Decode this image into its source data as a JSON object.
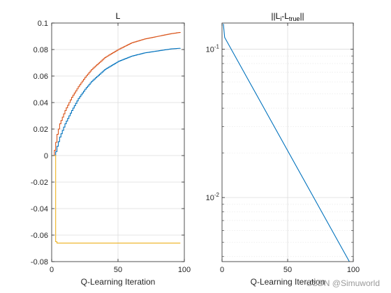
{
  "watermark": "CSDN @Simuworld",
  "colors": {
    "series1": "#0072BD",
    "series2": "#D95319",
    "series3": "#EDB120",
    "grid": "#dcdcdc",
    "axis": "#262626",
    "minor_grid": "#e6e6e6"
  },
  "chart_data": [
    {
      "type": "line",
      "style": "stairs",
      "title": "L",
      "xlabel": "Q-Learning Iteration",
      "ylabel": "",
      "xlim": [
        0,
        100
      ],
      "ylim": [
        -0.08,
        0.1
      ],
      "xticks": [
        0,
        50,
        100
      ],
      "xticklabels": [
        "0",
        "50",
        "100"
      ],
      "yticks": [
        -0.08,
        -0.06,
        -0.04,
        -0.02,
        0,
        0.02,
        0.04,
        0.06,
        0.08,
        0.1
      ],
      "yticklabels": [
        "-0.08",
        "-0.06",
        "-0.04",
        "-0.02",
        "0",
        "0.02",
        "0.04",
        "0.06",
        "0.08",
        "0.1"
      ],
      "grid": true,
      "x": [
        1,
        2,
        3,
        4,
        6,
        8,
        10,
        15,
        20,
        25,
        30,
        40,
        50,
        60,
        70,
        80,
        90,
        97
      ],
      "series": [
        {
          "color": "#0072BD",
          "values": [
            0,
            0,
            0.003,
            0.007,
            0.014,
            0.019,
            0.024,
            0.034,
            0.043,
            0.05,
            0.056,
            0.065,
            0.071,
            0.075,
            0.0775,
            0.079,
            0.0805,
            0.081
          ]
        },
        {
          "color": "#D95319",
          "values": [
            0,
            0.004,
            0.01,
            0.016,
            0.024,
            0.029,
            0.034,
            0.044,
            0.052,
            0.059,
            0.065,
            0.074,
            0.08,
            0.085,
            0.088,
            0.09,
            0.092,
            0.093
          ]
        },
        {
          "color": "#EDB120",
          "values": [
            0,
            0,
            -0.065,
            -0.066,
            -0.066,
            -0.066,
            -0.066,
            -0.066,
            -0.066,
            -0.066,
            -0.066,
            -0.066,
            -0.066,
            -0.066,
            -0.066,
            -0.066,
            -0.066,
            -0.066
          ]
        }
      ]
    },
    {
      "type": "line",
      "title": "||L_i-L_true||",
      "title_parts": {
        "base1": "||L",
        "sub1": "i",
        "mid": "-L",
        "sub2": "true",
        "end": "||"
      },
      "xlabel": "Q-Learning Iteration",
      "ylabel": "",
      "yscale": "log",
      "xlim": [
        0,
        100
      ],
      "ylim": [
        0.0037,
        0.15
      ],
      "xticks": [
        0,
        50,
        100
      ],
      "xticklabels": [
        "0",
        "50",
        "100"
      ],
      "yticks": [
        0.01,
        0.1
      ],
      "ytick_base": "10",
      "ytick_exponents": [
        "-2",
        "-1"
      ],
      "grid": true,
      "minor_grid": true,
      "x": [
        1,
        2,
        97
      ],
      "series": [
        {
          "color": "#0072BD",
          "values": [
            0.148,
            0.12,
            0.0037
          ]
        }
      ]
    }
  ]
}
